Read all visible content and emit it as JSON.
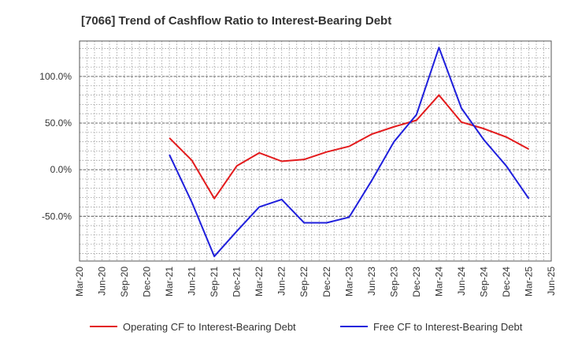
{
  "chart_data": {
    "type": "line",
    "title": "[7066]  Trend of Cashflow Ratio to Interest-Bearing Debt",
    "xlabel": "",
    "ylabel": "",
    "x": [
      "Mar-20",
      "Jun-20",
      "Sep-20",
      "Dec-20",
      "Mar-21",
      "Jun-21",
      "Sep-21",
      "Dec-21",
      "Mar-22",
      "Jun-22",
      "Sep-22",
      "Dec-22",
      "Mar-23",
      "Jun-23",
      "Sep-23",
      "Dec-23",
      "Mar-24",
      "Jun-24",
      "Sep-24",
      "Dec-24",
      "Mar-25",
      "Jun-25"
    ],
    "yticks": [
      {
        "value": 100,
        "label": "100.0%"
      },
      {
        "value": 50,
        "label": "50.0%"
      },
      {
        "value": 0,
        "label": "0.0%"
      },
      {
        "value": -50,
        "label": "-50.0%"
      }
    ],
    "ylim": [
      -98,
      138
    ],
    "grid": true,
    "legend_position": "bottom",
    "series": [
      {
        "name": "Operating CF to Interest-Bearing Debt",
        "color": "#e31a1c",
        "values": [
          null,
          null,
          null,
          null,
          34,
          10,
          -31,
          4,
          18,
          9,
          11,
          19,
          25,
          38,
          46,
          53,
          80,
          51,
          44,
          35,
          22,
          null
        ]
      },
      {
        "name": "Free CF to Interest-Bearing Debt",
        "color": "#1f1fdc",
        "values": [
          null,
          null,
          null,
          null,
          16,
          -35,
          -93,
          -66,
          -40,
          -32,
          -57,
          -57,
          -51,
          -12,
          30,
          59,
          131,
          66,
          32,
          4,
          -31,
          null
        ]
      }
    ]
  }
}
